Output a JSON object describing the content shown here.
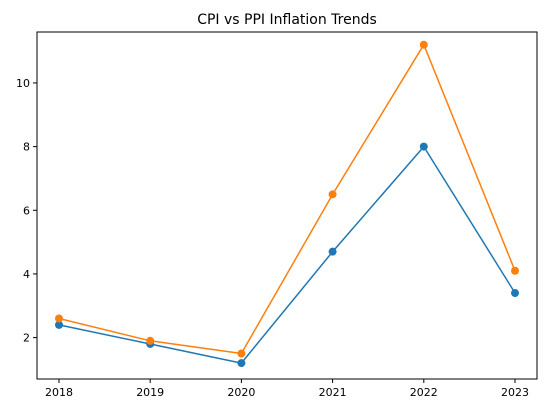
{
  "chart_data": {
    "type": "line",
    "title": "CPI vs PPI Inflation Trends",
    "xlabel": "",
    "ylabel": "",
    "categories": [
      "2018",
      "2019",
      "2020",
      "2021",
      "2022",
      "2023"
    ],
    "ylim": [
      0.7,
      11.6
    ],
    "yticks": [
      2,
      4,
      6,
      8,
      10
    ],
    "grid": false,
    "legend": false,
    "series": [
      {
        "color": "#1f77b4",
        "values": [
          2.4,
          1.8,
          1.2,
          4.7,
          8.0,
          3.4
        ]
      },
      {
        "color": "#ff7f0e",
        "values": [
          2.6,
          1.9,
          1.5,
          6.5,
          11.2,
          4.1
        ]
      }
    ]
  }
}
